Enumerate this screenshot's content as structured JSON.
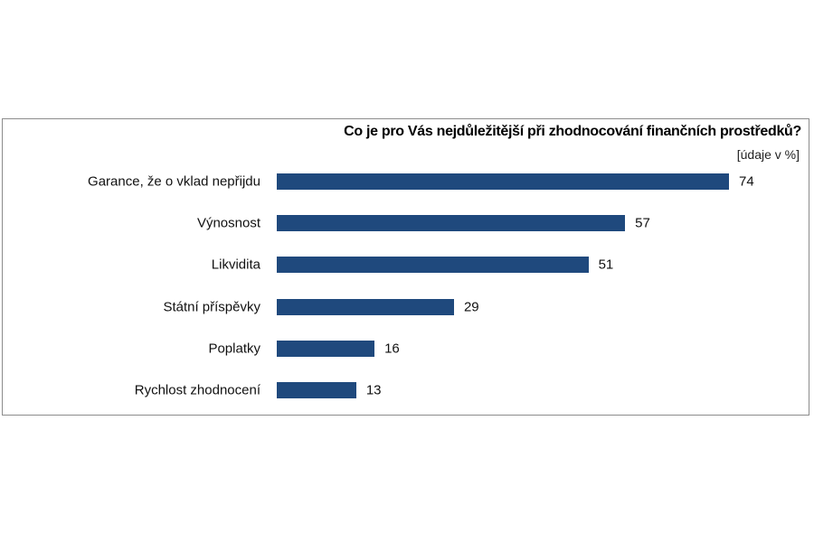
{
  "chart_data": {
    "type": "bar",
    "orientation": "horizontal",
    "title": "Co je pro Vás nejdůležitější při zhodnocování finančních prostředků?",
    "unit_label": "[údaje v %]",
    "categories": [
      "Garance, že o vklad nepřijdu",
      "Výnosnost",
      "Likvidita",
      "Státní příspěvky",
      "Poplatky",
      "Rychlost zhodnocení"
    ],
    "values": [
      74,
      57,
      51,
      29,
      16,
      13
    ],
    "bar_color": "#1f497d",
    "grid": false,
    "legend": "none",
    "data_labels": true
  }
}
